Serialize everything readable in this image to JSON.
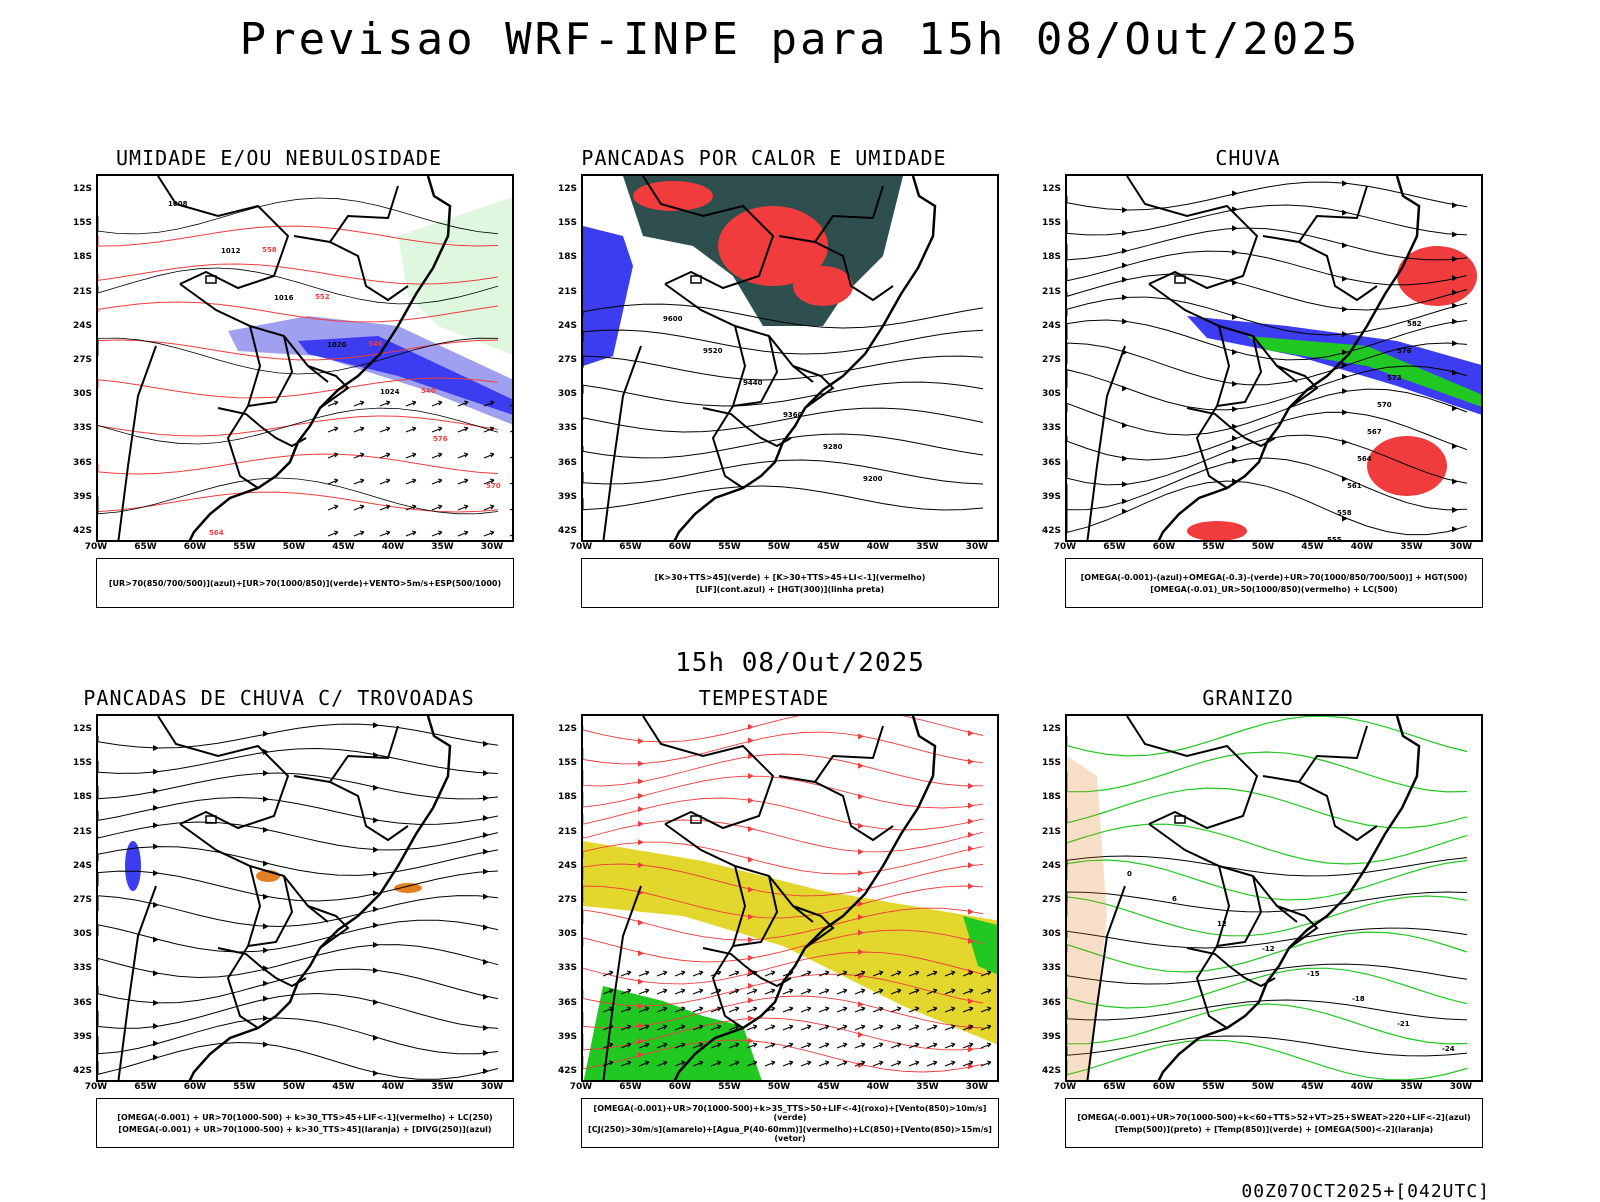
{
  "title": "Previsao WRF-INPE  para 15h 08/Out/2025",
  "mid_date": "15h 08/Out/2025",
  "footer": "00Z07OCT2025+[042UTC]",
  "lat_labels": [
    "12S",
    "15S",
    "18S",
    "21S",
    "24S",
    "27S",
    "30S",
    "33S",
    "36S",
    "39S",
    "42S"
  ],
  "lon_labels": [
    "70W",
    "65W",
    "60W",
    "55W",
    "50W",
    "45W",
    "40W",
    "35W",
    "30W"
  ],
  "panels": [
    {
      "title": "UMIDADE E/OU NEBULOSIDADE",
      "legend": [
        "[UR>70(850/700/500)](azul)+[UR>70(1000/850)](verde)+VENTO>5m/s+ESP(500/1000)"
      ],
      "contour_labels": [
        "1008",
        "1012",
        "1016",
        "1020",
        "1024",
        "576",
        "570",
        "564",
        "558",
        "552",
        "546",
        "540"
      ]
    },
    {
      "title": "PANCADAS POR CALOR E UMIDADE",
      "legend": [
        "[K>30+TTS>45](verde) + [K>30+TTS>45+LI<-1](vermelho)",
        "[LIF](cont.azul) + [HGT(300)](linha preta)"
      ],
      "contour_labels": [
        "9600",
        "9520",
        "9440",
        "9360",
        "9280",
        "9200"
      ]
    },
    {
      "title": "CHUVA",
      "legend": [
        "[OMEGA(-0.001)-(azul)+OMEGA(-0.3)-(verde)+UR>70(1000/850/700/500)] + HGT(500)",
        "[OMEGA(-0.01)_UR>50(1000/850)(vermelho) + LC(500)"
      ],
      "contour_labels": [
        "582",
        "576",
        "573",
        "570",
        "567",
        "564",
        "561",
        "558",
        "555"
      ]
    },
    {
      "title": "PANCADAS DE CHUVA C/ TROVOADAS",
      "legend": [
        "[OMEGA(-0.001) + UR>70(1000-500) + k>30_TTS>45+LIF<-1](vermelho) + LC(250)",
        "[OMEGA(-0.001) + UR>70(1000-500) + k>30_TTS>45](laranja) + [DIVG(250)](azul)"
      ],
      "contour_labels": []
    },
    {
      "title": "TEMPESTADE",
      "legend": [
        "[OMEGA(-0.001)+UR>70(1000-500)+k>35_TTS>50+LIF<-4](roxo)+[Vento(850)>10m/s](verde)",
        "[CJ(250)>30m/s](amarelo)+[Agua_P(40-60mm)](vermelho)+LC(850)+[Vento(850)>15m/s](vetor)"
      ],
      "contour_labels": []
    },
    {
      "title": "GRANIZO",
      "legend": [
        "[OMEGA(-0.001)+UR>70(1000-500)+k<60+TTS>52+VT>25+SWEAT>220+LIF<-2](azul)",
        "[Temp(500)](preto) + [Temp(850)](verde) + [OMEGA(500)<-2](laranja)"
      ],
      "contour_labels": [
        "0",
        "6",
        "12",
        "-12",
        "-15",
        "-18",
        "-21",
        "-24"
      ]
    }
  ],
  "colors": {
    "red": "#f03c3c",
    "green": "#22c822",
    "blue": "#3c3cf0",
    "slate": "#2f4f4f",
    "yellow": "#e3d62c",
    "lavender": "#a0a0f0",
    "orange": "#e08020"
  }
}
